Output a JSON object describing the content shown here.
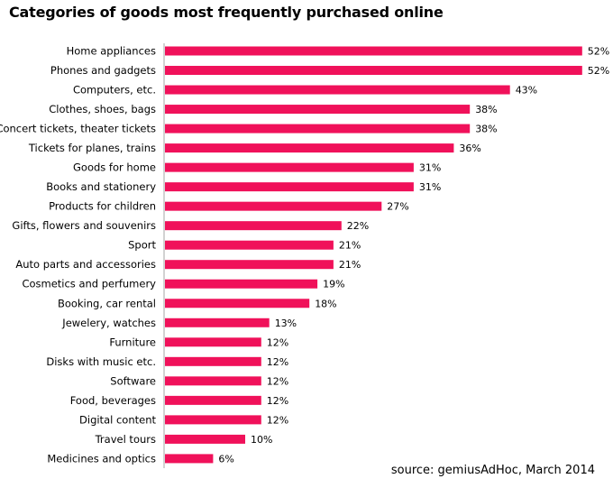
{
  "chart_data": {
    "type": "bar",
    "orientation": "horizontal",
    "title": "Categories of goods most frequently purchased online",
    "categories": [
      "Home appliances",
      "Phones and gadgets",
      "Computers, etc.",
      "Clothes, shoes, bags",
      "Concert tickets, theater tickets",
      "Tickets for planes, trains",
      "Goods for home",
      "Books and stationery",
      "Products for children",
      "Gifts, flowers and souvenirs",
      "Sport",
      "Auto parts and accessories",
      "Cosmetics and perfumery",
      "Booking, car rental",
      "Jewelery, watches",
      "Furniture",
      "Disks with music etc.",
      "Software",
      "Food, beverages",
      "Digital content",
      "Travel tours",
      "Medicines and optics"
    ],
    "values": [
      52,
      52,
      43,
      38,
      38,
      36,
      31,
      31,
      27,
      22,
      21,
      21,
      19,
      18,
      13,
      12,
      12,
      12,
      12,
      12,
      10,
      6
    ],
    "value_labels": [
      "52%",
      "52%",
      "43%",
      "38%",
      "38%",
      "36%",
      "31%",
      "31%",
      "27%",
      "22%",
      "21%",
      "21%",
      "19%",
      "18%",
      "13%",
      "12%",
      "12%",
      "12%",
      "12%",
      "12%",
      "10%",
      "6%"
    ],
    "unit": "%",
    "bar_color": "#f0115a",
    "grid": false,
    "legend": "none",
    "source": "source: gemiusAdHoc, March 2014"
  }
}
